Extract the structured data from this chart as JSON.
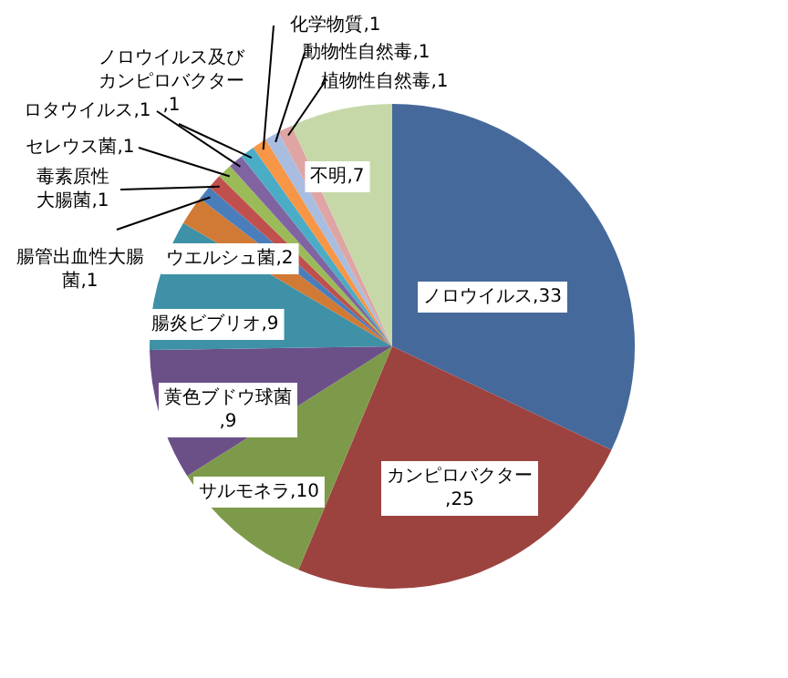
{
  "chart_data": {
    "type": "pie",
    "categories": [
      "ノロウイルス",
      "カンピロバクター",
      "サルモネラ",
      "黄色ブドウ球菌",
      "腸炎ビブリオ",
      "ウエルシュ菌",
      "腸管出血性大腸菌",
      "毒素原性大腸菌",
      "セレウス菌",
      "ロタウイルス",
      "ノロウイルス及びカンピロバクター",
      "化学物質",
      "動物性自然毒",
      "植物性自然毒",
      "不明"
    ],
    "values": [
      33,
      25,
      10,
      9,
      9,
      2,
      1,
      1,
      1,
      1,
      1,
      1,
      1,
      1,
      7
    ],
    "colors": [
      "#46699b",
      "#9c433f",
      "#7d9a4a",
      "#6b5088",
      "#3e91a6",
      "#d17a36",
      "#4a7ebb",
      "#c0504d",
      "#9bbb59",
      "#8064a2",
      "#4bacc6",
      "#f79646",
      "#a9bde0",
      "#dea5a4",
      "#c6d8a8"
    ],
    "value_labels": [
      ",33",
      ",25",
      ",10",
      ",9",
      ",9",
      ",2",
      ",1",
      ",1",
      ",1",
      ",1",
      ",1",
      ",1",
      ",1",
      ",1",
      ",7"
    ],
    "legend": false
  }
}
